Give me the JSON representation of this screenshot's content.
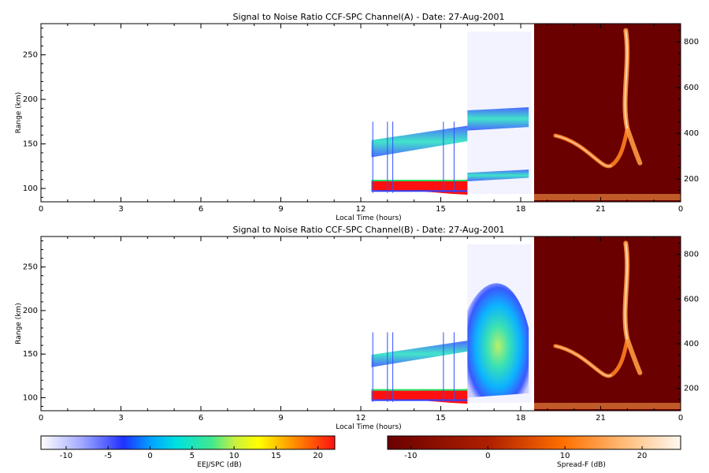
{
  "chart_data": [
    {
      "type": "heatmap",
      "title": "Signal to Noise Ratio CCF-SPC Channel(A) - Date: 27-Aug-2001",
      "xlabel": "Local Time (hours)",
      "ylabel": "Range (km)",
      "xlim": [
        0,
        24
      ],
      "ylim": [
        85,
        285
      ],
      "x_ticks": [
        "0",
        "3",
        "6",
        "9",
        "12",
        "15",
        "18",
        "21",
        "0"
      ],
      "y_ticks": [
        "100",
        "150",
        "200",
        "250"
      ],
      "y2_ticks": [
        "200",
        "400",
        "600",
        "800"
      ],
      "y2lim": [
        100,
        880
      ],
      "regions": [
        {
          "name": "E region echo",
          "x": [
            12.4,
            16.0
          ],
          "y": [
            96,
            108
          ],
          "value_db": 22
        },
        {
          "name": "150 km echo",
          "x": [
            12.4,
            16.0
          ],
          "y": [
            135,
            165
          ],
          "value_db": 0
        },
        {
          "name": "upper valley echo",
          "x": [
            16.0,
            18.3
          ],
          "y": [
            165,
            190
          ],
          "value_db": 2
        },
        {
          "name": "lower valley echo",
          "x": [
            16.0,
            18.3
          ],
          "y": [
            108,
            120
          ],
          "value_db": 0
        },
        {
          "name": "Spread-F plume",
          "x": [
            19.0,
            22.5
          ],
          "y2": [
            200,
            880
          ],
          "value_db": 18
        }
      ]
    },
    {
      "type": "heatmap",
      "title": "Signal to Noise Ratio CCF-SPC Channel(B) - Date: 27-Aug-2001",
      "xlabel": "Local Time (hours)",
      "ylabel": "Range (km)",
      "xlim": [
        0,
        24
      ],
      "ylim": [
        85,
        285
      ],
      "x_ticks": [
        "0",
        "3",
        "6",
        "9",
        "12",
        "15",
        "18",
        "21",
        "0"
      ],
      "y_ticks": [
        "100",
        "150",
        "200",
        "250"
      ],
      "y2_ticks": [
        "200",
        "400",
        "600",
        "800"
      ],
      "y2lim": [
        100,
        880
      ],
      "regions": [
        {
          "name": "E region echo",
          "x": [
            12.4,
            16.0
          ],
          "y": [
            96,
            108
          ],
          "value_db": 22
        },
        {
          "name": "150 km echo",
          "x": [
            12.4,
            16.0
          ],
          "y": [
            135,
            160
          ],
          "value_db": 0
        },
        {
          "name": "valley echo blob",
          "x": [
            16.0,
            18.3
          ],
          "y": [
            100,
            240
          ],
          "value_db": 5
        },
        {
          "name": "Spread-F plume",
          "x": [
            19.0,
            22.5
          ],
          "y2": [
            200,
            880
          ],
          "value_db": 18
        }
      ]
    }
  ],
  "colorbars": [
    {
      "label": "EEJ/SPC (dB)",
      "range": [
        -13,
        22
      ],
      "ticks": [
        "-10",
        "-5",
        "0",
        "5",
        "10",
        "15",
        "20"
      ]
    },
    {
      "label": "Spread-F (dB)",
      "range": [
        -13,
        25
      ],
      "ticks": [
        "-10",
        "0",
        "10",
        "20"
      ]
    }
  ]
}
